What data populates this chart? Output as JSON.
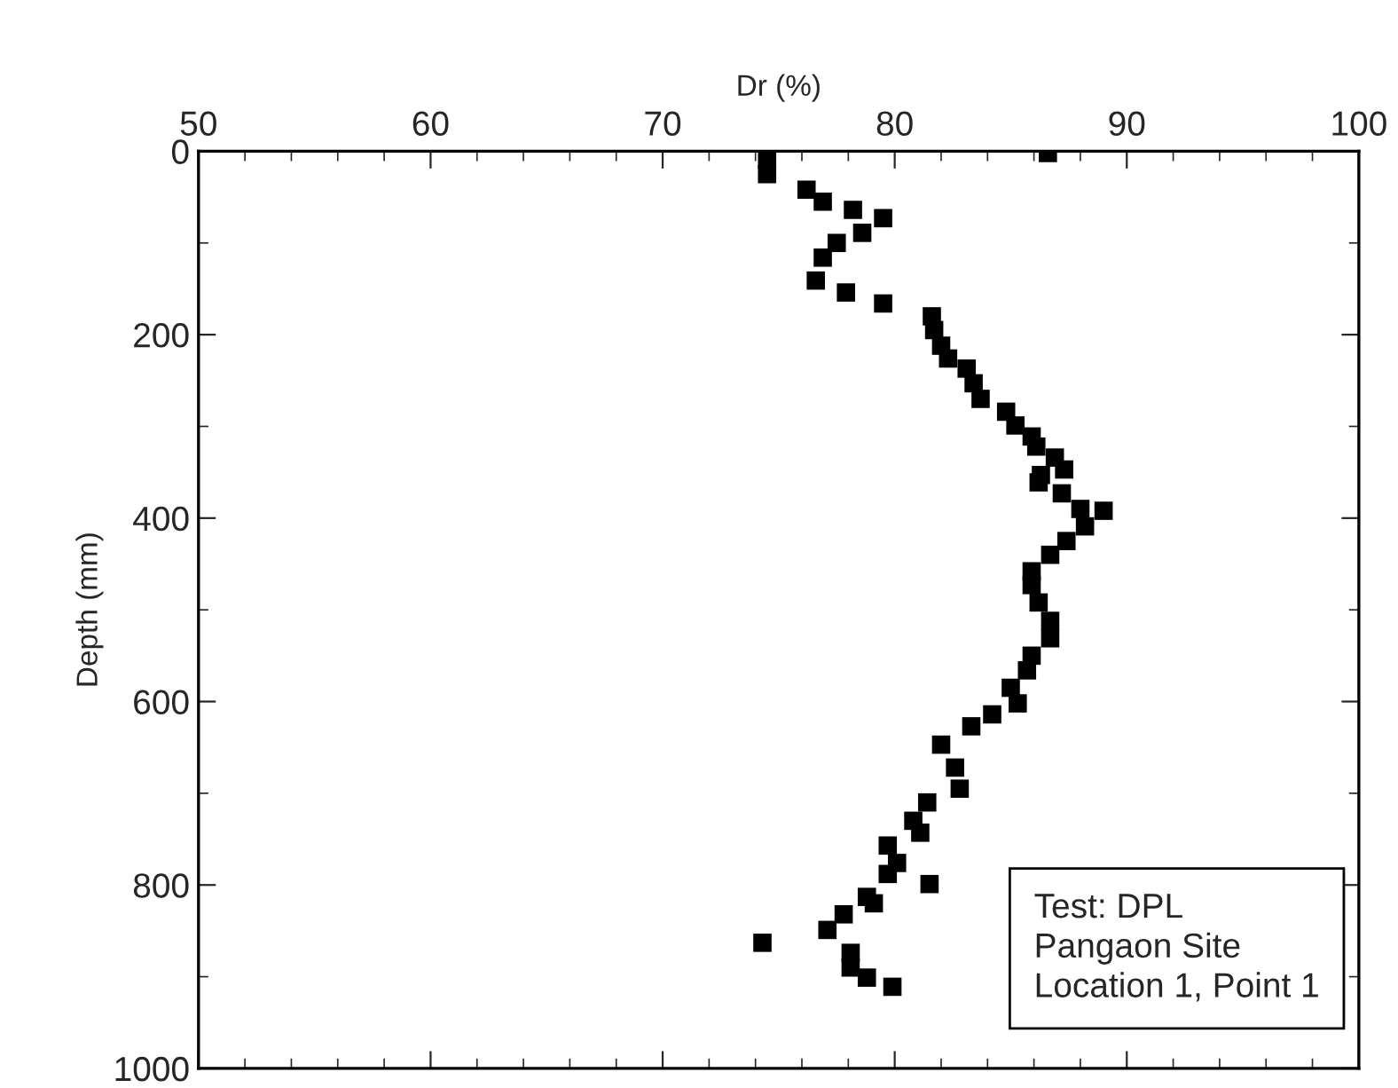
{
  "chart_data": {
    "type": "scatter",
    "xlabel": "Dr (%)",
    "ylabel": "Depth (mm)",
    "xlim": [
      50,
      100
    ],
    "xticks": [
      50,
      60,
      70,
      80,
      90,
      100
    ],
    "ylim": [
      1000,
      0
    ],
    "yticks": [
      0,
      200,
      400,
      600,
      800,
      1000
    ],
    "marker": "square",
    "grid": false,
    "legend": false,
    "annotations": [
      "Test: DPL\nPangaon Site\nLocation 1, Point 1"
    ],
    "series": [
      {
        "color": "#000000",
        "x": [
          86.6,
          74.5,
          74.5,
          76.2,
          76.9,
          78.2,
          79.5,
          78.6,
          77.5,
          76.9,
          76.6,
          77.9,
          79.5,
          81.6,
          81.7,
          82.0,
          82.3,
          83.1,
          83.4,
          83.7,
          84.8,
          85.2,
          85.9,
          86.1,
          86.9,
          87.3,
          86.3,
          86.2,
          87.2,
          88.0,
          89.0,
          88.2,
          87.4,
          86.7,
          85.9,
          85.9,
          86.2,
          86.7,
          86.7,
          85.9,
          85.7,
          85.0,
          85.3,
          84.2,
          83.3,
          82.0,
          82.6,
          82.8,
          81.4,
          80.8,
          81.1,
          79.7,
          80.1,
          79.7,
          81.5,
          78.8,
          79.1,
          77.8,
          77.1,
          74.3,
          78.1,
          78.1,
          78.8,
          79.9
        ],
        "values": [
          2,
          10,
          25,
          42,
          55,
          64,
          73,
          89,
          100,
          116,
          141,
          154,
          166,
          180,
          195,
          212,
          226,
          237,
          253,
          270,
          284,
          299,
          311,
          322,
          334,
          347,
          353,
          361,
          373,
          390,
          392,
          409,
          425,
          440,
          458,
          473,
          492,
          512,
          531,
          550,
          566,
          585,
          602,
          614,
          627,
          647,
          672,
          695,
          710,
          730,
          743,
          757,
          776,
          788,
          799,
          813,
          820,
          832,
          849,
          863,
          874,
          890,
          901,
          911
        ]
      }
    ]
  }
}
